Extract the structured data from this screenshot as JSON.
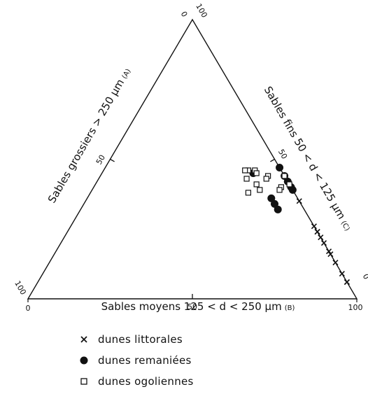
{
  "chart_data": {
    "type": "scatter",
    "subtype": "ternary",
    "title": "",
    "axes": {
      "A": {
        "label": "Sables grossiers  > 250 µm",
        "suffix": "(A)",
        "ticks": [
          "100",
          "50",
          "0"
        ]
      },
      "B": {
        "label": "Sables moyens  125 < d < 250 µm",
        "suffix": "(B)",
        "ticks": [
          "0",
          "50",
          "100"
        ]
      },
      "C": {
        "label": "Sables fins  50 < d < 125 µm",
        "suffix": "(C)",
        "ticks": [
          "0",
          "50",
          "100"
        ]
      }
    },
    "range": [
      0,
      100
    ],
    "grid": false,
    "legend_position": "bottom-left",
    "series": [
      {
        "name": "dunes littorales",
        "marker": "x",
        "points": [
          {
            "A": 0,
            "B": 61,
            "C": 39
          },
          {
            "A": 0,
            "B": 65,
            "C": 35
          },
          {
            "A": 0,
            "B": 74,
            "C": 26
          },
          {
            "A": 0,
            "B": 76,
            "C": 24
          },
          {
            "A": 0,
            "B": 76,
            "C": 24
          },
          {
            "A": 0,
            "B": 78,
            "C": 22
          },
          {
            "A": 0,
            "B": 80,
            "C": 20
          },
          {
            "A": 0,
            "B": 83,
            "C": 17
          },
          {
            "A": 0,
            "B": 84,
            "C": 16
          },
          {
            "A": 0,
            "B": 87,
            "C": 13
          },
          {
            "A": 0,
            "B": 91,
            "C": 9
          },
          {
            "A": 0,
            "B": 94,
            "C": 6
          },
          {
            "A": 0,
            "B": 94,
            "C": 6
          }
        ]
      },
      {
        "name": "dunes remaniées",
        "marker": "filled-circle",
        "points": [
          {
            "A": 9,
            "B": 46,
            "C": 45
          },
          {
            "A": 8,
            "B": 60,
            "C": 32
          },
          {
            "A": 8,
            "B": 56,
            "C": 36
          },
          {
            "A": 8,
            "B": 58,
            "C": 34
          },
          {
            "A": 0,
            "B": 53,
            "C": 47
          },
          {
            "A": 0,
            "B": 56,
            "C": 44
          },
          {
            "A": 0,
            "B": 58,
            "C": 42
          },
          {
            "A": 0,
            "B": 60,
            "C": 40
          },
          {
            "A": 0,
            "B": 61,
            "C": 39
          }
        ]
      },
      {
        "name": "dunes ogoliennes",
        "marker": "open-square",
        "points": [
          {
            "A": 10,
            "B": 44,
            "C": 46
          },
          {
            "A": 8,
            "B": 46,
            "C": 46
          },
          {
            "A": 11,
            "B": 43,
            "C": 46
          },
          {
            "A": 8,
            "B": 47,
            "C": 45
          },
          {
            "A": 5,
            "B": 51,
            "C": 44
          },
          {
            "A": 6,
            "B": 51,
            "C": 43
          },
          {
            "A": 0,
            "B": 56,
            "C": 44
          },
          {
            "A": 0,
            "B": 59,
            "C": 41
          },
          {
            "A": 12,
            "B": 45,
            "C": 43
          },
          {
            "A": 10,
            "B": 49,
            "C": 41
          },
          {
            "A": 3,
            "B": 57,
            "C": 40
          },
          {
            "A": 4,
            "B": 57,
            "C": 39
          },
          {
            "A": 10,
            "B": 51,
            "C": 39
          },
          {
            "A": 14,
            "B": 48,
            "C": 38
          }
        ]
      }
    ]
  }
}
